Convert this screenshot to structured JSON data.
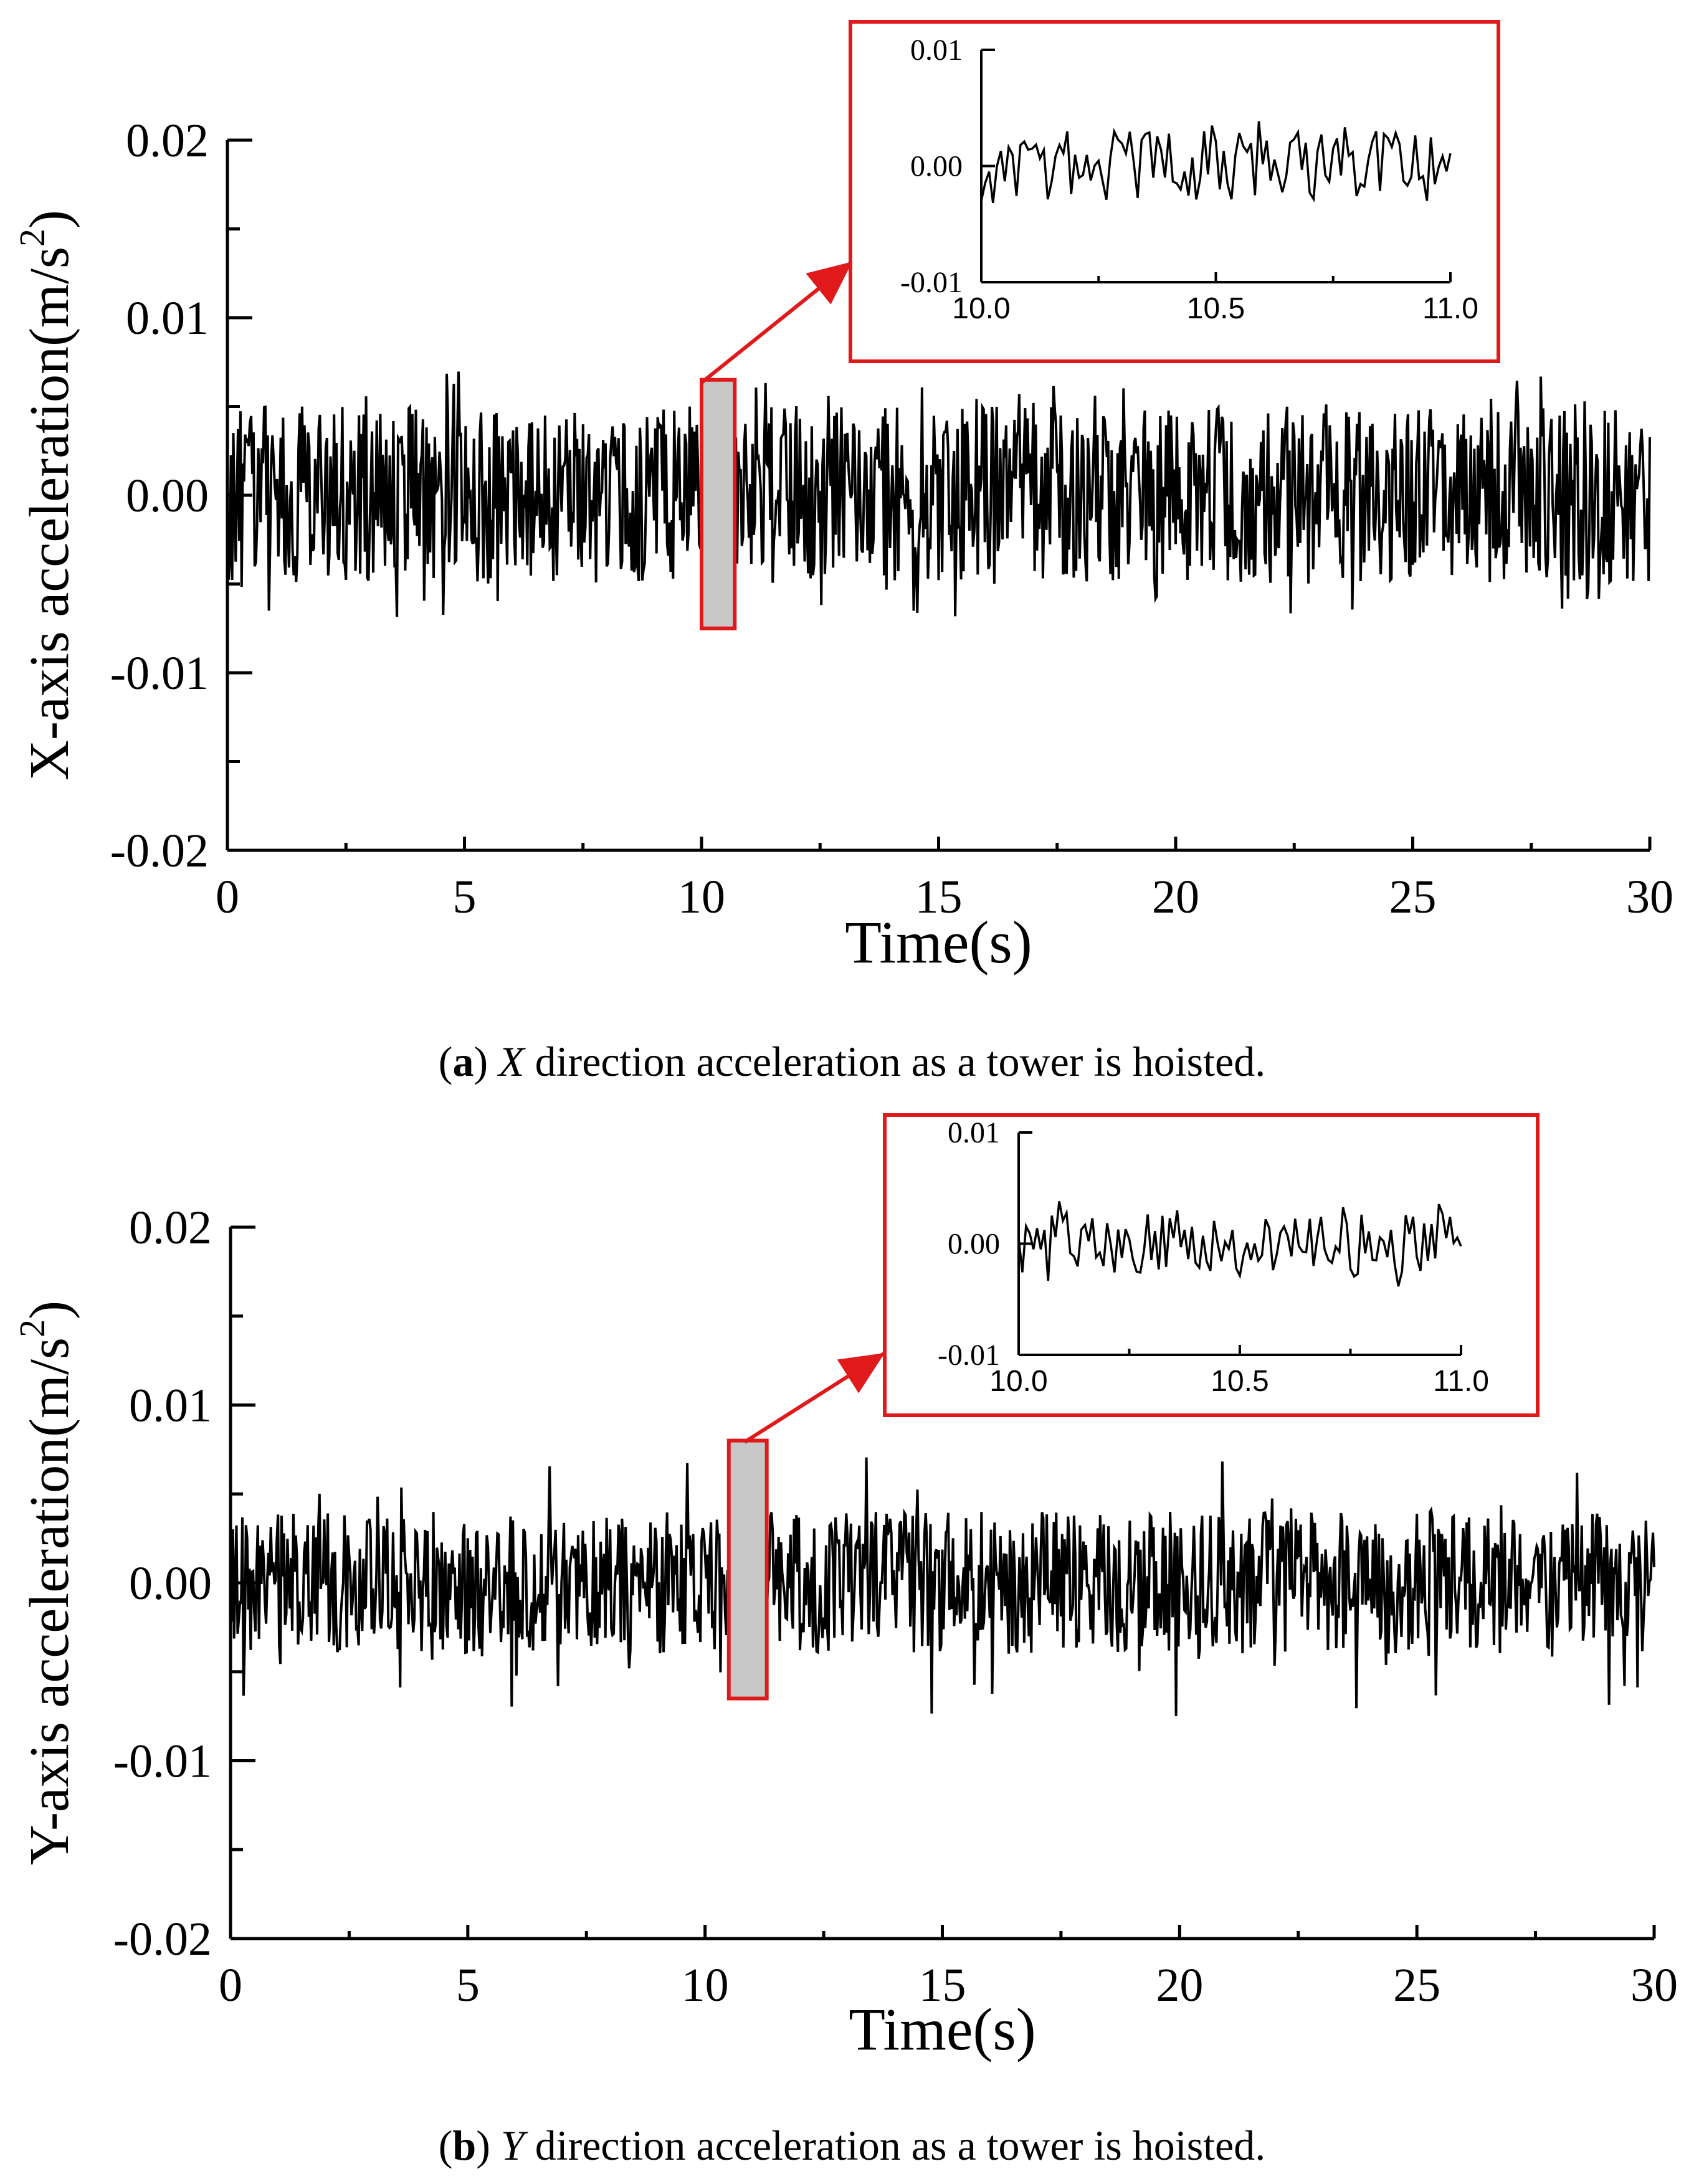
{
  "chart_data": [
    {
      "type": "line",
      "panel_label": "a",
      "caption_axis": "X",
      "caption_text": " direction acceleration as a tower is hoisted.",
      "xlabel": "Time(s)",
      "ylabel_main": "X-axis acceleration(m/s",
      "ylabel_sup": "2",
      "ylabel_close": ")",
      "xlim": [
        0,
        30
      ],
      "ylim": [
        -0.02,
        0.02
      ],
      "x_ticks": [
        "0",
        "5",
        "10",
        "15",
        "20",
        "25",
        "30"
      ],
      "y_ticks": [
        "0.02",
        "0.01",
        "0.00",
        "-0.01",
        "-0.02"
      ],
      "series": [
        {
          "name": "X-axis acceleration",
          "amplitude_typical": 0.005,
          "amplitude_peak": 0.007,
          "sample_count": 1200
        }
      ],
      "highlight": {
        "x_range": [
          10.0,
          10.7
        ],
        "y_range": [
          -0.0075,
          0.0065
        ]
      },
      "inset": {
        "xlim": [
          10.0,
          11.0
        ],
        "ylim": [
          -0.01,
          0.01
        ],
        "x_ticks": [
          "10.0",
          "10.5",
          "11.0"
        ],
        "y_ticks": [
          "0.01",
          "0.00",
          "-0.01"
        ],
        "amplitude_typical": 0.003,
        "sample_count": 120
      }
    },
    {
      "type": "line",
      "panel_label": "b",
      "caption_axis": "Y",
      "caption_text": " direction acceleration as a tower is hoisted.",
      "xlabel": "Time(s)",
      "ylabel_main": "Y-axis acceleration(m/s",
      "ylabel_sup": "2",
      "ylabel_close": ")",
      "xlim": [
        0,
        30
      ],
      "ylim": [
        -0.02,
        0.02
      ],
      "x_ticks": [
        "0",
        "5",
        "10",
        "15",
        "20",
        "25",
        "30"
      ],
      "y_ticks": [
        "0.02",
        "0.01",
        "0.00",
        "-0.01",
        "-0.02"
      ],
      "series": [
        {
          "name": "Y-axis acceleration",
          "amplitude_typical": 0.004,
          "amplitude_peak": 0.0075,
          "sample_count": 1200
        }
      ],
      "highlight": {
        "x_range": [
          10.5,
          11.3
        ],
        "y_range": [
          -0.0065,
          0.008
        ]
      },
      "inset": {
        "xlim": [
          10.0,
          11.0
        ],
        "ylim": [
          -0.01,
          0.01
        ],
        "x_ticks": [
          "10.0",
          "10.5",
          "11.0"
        ],
        "y_ticks": [
          "0.01",
          "0.00",
          "-0.01"
        ],
        "amplitude_typical": 0.003,
        "sample_count": 120
      }
    }
  ],
  "colors": {
    "signal": "#000000",
    "highlight_fill": "#c8c8c8",
    "highlight_stroke": "#e0191b",
    "axis": "#000000"
  }
}
